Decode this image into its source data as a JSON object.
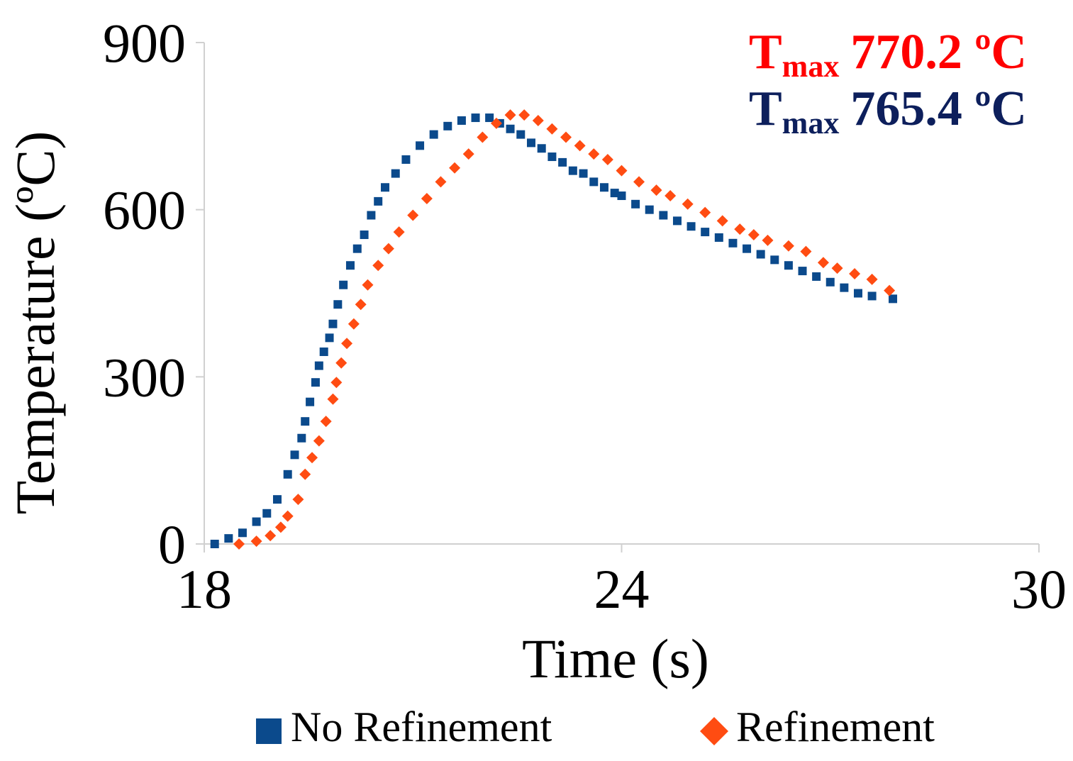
{
  "chart_data": {
    "type": "scatter",
    "xlabel": "Time (s)",
    "ylabel": "Temperature (ºC)",
    "xlim": [
      18,
      30
    ],
    "ylim": [
      0,
      900
    ],
    "x_ticks": [
      "18",
      "24",
      "30"
    ],
    "y_ticks": [
      "0",
      "300",
      "600",
      "900"
    ],
    "grid": false,
    "legend_position": "bottom",
    "annotations": [
      {
        "symbol": "T",
        "subscript": "max",
        "value": "770.2 ºC",
        "color": "#ff0000"
      },
      {
        "symbol": "T",
        "subscript": "max",
        "value": "765.4 ºC",
        "color": "#0d1f5c"
      }
    ],
    "series": [
      {
        "name": "No Refinement",
        "marker": "square",
        "color": "#0b4a8c",
        "x": [
          18.15,
          18.35,
          18.55,
          18.75,
          18.9,
          19.05,
          19.2,
          19.3,
          19.4,
          19.45,
          19.52,
          19.6,
          19.65,
          19.72,
          19.8,
          19.85,
          19.92,
          20.0,
          20.1,
          20.2,
          20.3,
          20.4,
          20.5,
          20.6,
          20.75,
          20.9,
          21.1,
          21.3,
          21.5,
          21.7,
          21.9,
          22.1,
          22.25,
          22.4,
          22.55,
          22.7,
          22.85,
          23.0,
          23.15,
          23.3,
          23.45,
          23.6,
          23.75,
          23.9,
          24.0,
          24.2,
          24.4,
          24.6,
          24.8,
          25.0,
          25.2,
          25.4,
          25.6,
          25.8,
          26.0,
          26.2,
          26.4,
          26.6,
          26.8,
          27.0,
          27.2,
          27.4,
          27.6,
          27.9
        ],
        "y": [
          0,
          10,
          20,
          40,
          55,
          80,
          125,
          160,
          190,
          220,
          255,
          290,
          320,
          345,
          370,
          395,
          430,
          465,
          500,
          530,
          555,
          590,
          615,
          640,
          665,
          690,
          715,
          735,
          750,
          760,
          765,
          765,
          755,
          745,
          735,
          720,
          710,
          695,
          685,
          670,
          665,
          650,
          640,
          630,
          625,
          610,
          600,
          590,
          580,
          570,
          560,
          550,
          540,
          530,
          520,
          510,
          500,
          490,
          480,
          470,
          460,
          450,
          445,
          440
        ]
      },
      {
        "name": "Refinement",
        "marker": "diamond",
        "color": "#ff4c12",
        "x": [
          18.5,
          18.75,
          18.95,
          19.1,
          19.2,
          19.35,
          19.45,
          19.55,
          19.65,
          19.75,
          19.85,
          19.9,
          19.97,
          20.05,
          20.15,
          20.25,
          20.35,
          20.5,
          20.65,
          20.8,
          21.0,
          21.2,
          21.4,
          21.6,
          21.8,
          22.0,
          22.2,
          22.4,
          22.6,
          22.8,
          23.0,
          23.2,
          23.4,
          23.6,
          23.8,
          24.0,
          24.25,
          24.5,
          24.7,
          24.95,
          25.2,
          25.45,
          25.7,
          25.9,
          26.1,
          26.4,
          26.65,
          26.9,
          27.1,
          27.35,
          27.6,
          27.85
        ],
        "y": [
          0,
          5,
          15,
          30,
          50,
          80,
          125,
          155,
          185,
          220,
          260,
          290,
          325,
          360,
          395,
          430,
          465,
          500,
          530,
          560,
          590,
          620,
          650,
          675,
          700,
          730,
          755,
          770,
          770,
          760,
          745,
          730,
          715,
          700,
          690,
          670,
          650,
          635,
          625,
          610,
          595,
          580,
          565,
          555,
          545,
          535,
          525,
          505,
          495,
          485,
          475,
          455
        ]
      }
    ]
  }
}
